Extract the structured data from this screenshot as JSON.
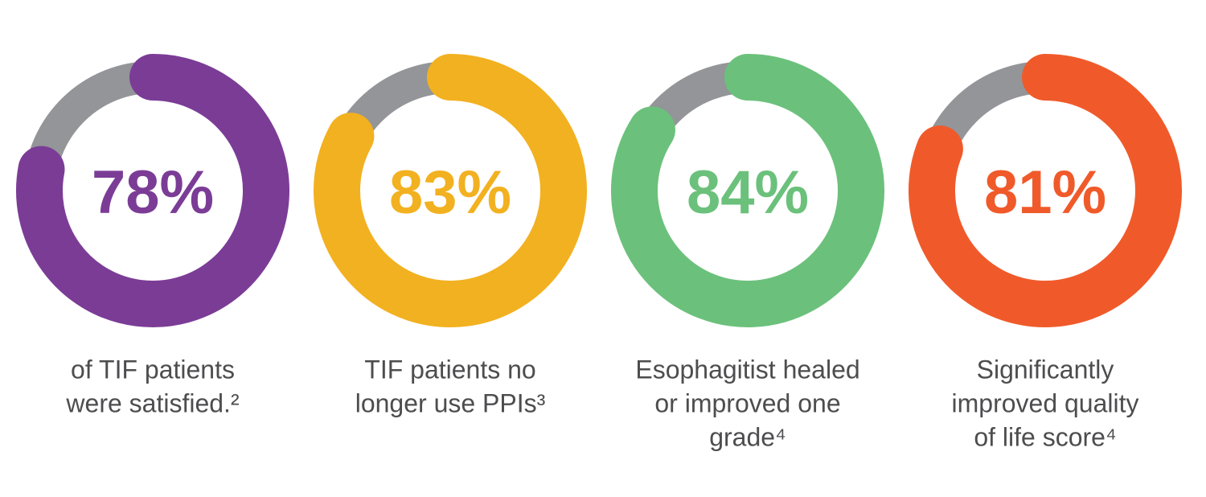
{
  "chart_data": [
    {
      "type": "donut",
      "values": [
        78
      ],
      "value_labels": [
        "78%"
      ],
      "color": "#7b3c96",
      "caption": [
        "of TIF patients",
        "were satisfied.²"
      ]
    },
    {
      "type": "donut",
      "values": [
        83
      ],
      "value_labels": [
        "83%"
      ],
      "color": "#f2b120",
      "caption": [
        "TIF patients no",
        "longer use PPIs³"
      ]
    },
    {
      "type": "donut",
      "values": [
        84
      ],
      "value_labels": [
        "84%"
      ],
      "color": "#6bc17b",
      "caption": [
        "Esophagitist healed",
        "or improved one",
        "grade⁴"
      ]
    },
    {
      "type": "donut",
      "values": [
        81
      ],
      "value_labels": [
        "81%"
      ],
      "color": "#f05a2a",
      "caption": [
        "Significantly",
        "improved quality",
        "of life score⁴"
      ]
    }
  ]
}
